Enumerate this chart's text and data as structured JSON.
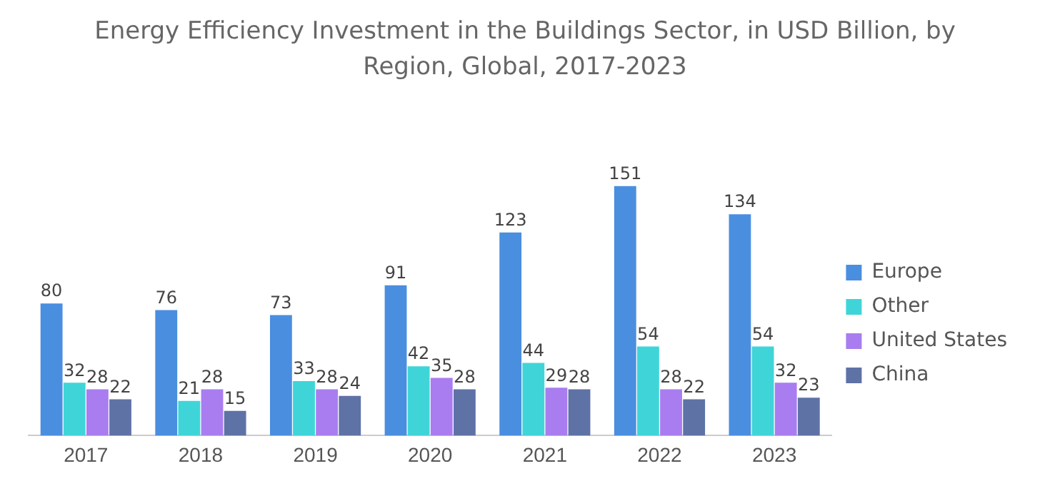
{
  "chart_data": {
    "type": "bar",
    "title": "Energy Efficiency Investment in the Buildings Sector, in USD Billion, by Region, Global, 2017-2023",
    "categories": [
      "2017",
      "2018",
      "2019",
      "2020",
      "2021",
      "2022",
      "2023"
    ],
    "series": [
      {
        "name": "Europe",
        "color": "#4a8ee0",
        "values": [
          80,
          76,
          73,
          91,
          123,
          151,
          134
        ]
      },
      {
        "name": "Other",
        "color": "#3fd5d8",
        "values": [
          32,
          21,
          33,
          42,
          44,
          54,
          54
        ]
      },
      {
        "name": "United States",
        "color": "#a97df0",
        "values": [
          28,
          28,
          28,
          35,
          29,
          28,
          32
        ]
      },
      {
        "name": "China",
        "color": "#5e72a6",
        "values": [
          22,
          15,
          24,
          28,
          28,
          22,
          23
        ]
      }
    ],
    "data_labels": true,
    "legend": "right",
    "grid": false
  }
}
